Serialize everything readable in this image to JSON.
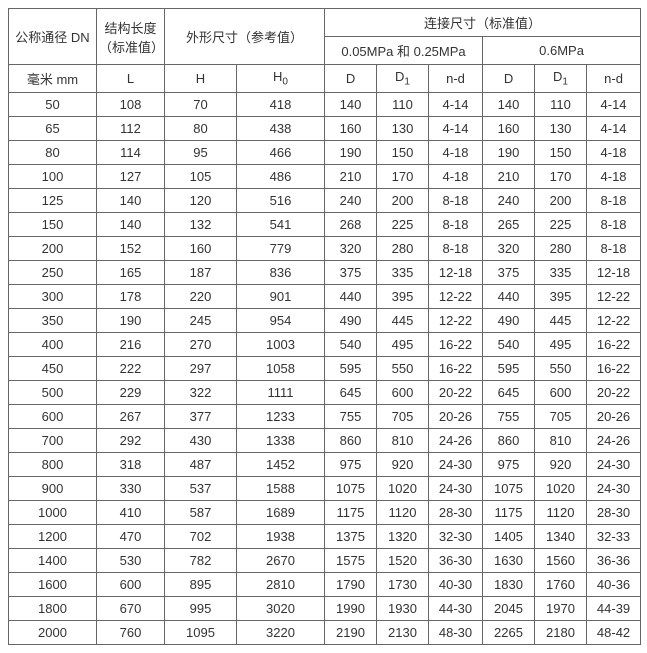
{
  "headers": {
    "dn": "公称通径 DN",
    "struct_len": "结构长度\n（标准值）",
    "outer_dim": "外形尺寸（参考值）",
    "conn_dim": "连接尺寸（标准值）",
    "press1": "0.05MPa 和 0.25MPa",
    "press2": "0.6MPa",
    "unit_mm": "毫米 mm",
    "L": "L",
    "H": "H",
    "H0": "H",
    "H0_sub": "0",
    "D": "D",
    "D1": "D",
    "D1_sub": "1",
    "nd": "n-d"
  },
  "col_widths": {
    "dn": 88,
    "L": 68,
    "H": 72,
    "H0": 88,
    "D": 52,
    "D1": 52,
    "nd": 54,
    "D2": 52,
    "D12": 52,
    "nd2": 54
  },
  "rows": [
    {
      "dn": "50",
      "L": "108",
      "H": "70",
      "H0": "418",
      "D": "140",
      "D1": "110",
      "nd": "4-14",
      "D2": "140",
      "D12": "110",
      "nd2": "4-14"
    },
    {
      "dn": "65",
      "L": "112",
      "H": "80",
      "H0": "438",
      "D": "160",
      "D1": "130",
      "nd": "4-14",
      "D2": "160",
      "D12": "130",
      "nd2": "4-14"
    },
    {
      "dn": "80",
      "L": "114",
      "H": "95",
      "H0": "466",
      "D": "190",
      "D1": "150",
      "nd": "4-18",
      "D2": "190",
      "D12": "150",
      "nd2": "4-18"
    },
    {
      "dn": "100",
      "L": "127",
      "H": "105",
      "H0": "486",
      "D": "210",
      "D1": "170",
      "nd": "4-18",
      "D2": "210",
      "D12": "170",
      "nd2": "4-18"
    },
    {
      "dn": "125",
      "L": "140",
      "H": "120",
      "H0": "516",
      "D": "240",
      "D1": "200",
      "nd": "8-18",
      "D2": "240",
      "D12": "200",
      "nd2": "8-18"
    },
    {
      "dn": "150",
      "L": "140",
      "H": "132",
      "H0": "541",
      "D": "268",
      "D1": "225",
      "nd": "8-18",
      "D2": "265",
      "D12": "225",
      "nd2": "8-18"
    },
    {
      "dn": "200",
      "L": "152",
      "H": "160",
      "H0": "779",
      "D": "320",
      "D1": "280",
      "nd": "8-18",
      "D2": "320",
      "D12": "280",
      "nd2": "8-18"
    },
    {
      "dn": "250",
      "L": "165",
      "H": "187",
      "H0": "836",
      "D": "375",
      "D1": "335",
      "nd": "12-18",
      "D2": "375",
      "D12": "335",
      "nd2": "12-18"
    },
    {
      "dn": "300",
      "L": "178",
      "H": "220",
      "H0": "901",
      "D": "440",
      "D1": "395",
      "nd": "12-22",
      "D2": "440",
      "D12": "395",
      "nd2": "12-22"
    },
    {
      "dn": "350",
      "L": "190",
      "H": "245",
      "H0": "954",
      "D": "490",
      "D1": "445",
      "nd": "12-22",
      "D2": "490",
      "D12": "445",
      "nd2": "12-22"
    },
    {
      "dn": "400",
      "L": "216",
      "H": "270",
      "H0": "1003",
      "D": "540",
      "D1": "495",
      "nd": "16-22",
      "D2": "540",
      "D12": "495",
      "nd2": "16-22"
    },
    {
      "dn": "450",
      "L": "222",
      "H": "297",
      "H0": "1058",
      "D": "595",
      "D1": "550",
      "nd": "16-22",
      "D2": "595",
      "D12": "550",
      "nd2": "16-22"
    },
    {
      "dn": "500",
      "L": "229",
      "H": "322",
      "H0": "1111",
      "D": "645",
      "D1": "600",
      "nd": "20-22",
      "D2": "645",
      "D12": "600",
      "nd2": "20-22"
    },
    {
      "dn": "600",
      "L": "267",
      "H": "377",
      "H0": "1233",
      "D": "755",
      "D1": "705",
      "nd": "20-26",
      "D2": "755",
      "D12": "705",
      "nd2": "20-26"
    },
    {
      "dn": "700",
      "L": "292",
      "H": "430",
      "H0": "1338",
      "D": "860",
      "D1": "810",
      "nd": "24-26",
      "D2": "860",
      "D12": "810",
      "nd2": "24-26"
    },
    {
      "dn": "800",
      "L": "318",
      "H": "487",
      "H0": "1452",
      "D": "975",
      "D1": "920",
      "nd": "24-30",
      "D2": "975",
      "D12": "920",
      "nd2": "24-30"
    },
    {
      "dn": "900",
      "L": "330",
      "H": "537",
      "H0": "1588",
      "D": "1075",
      "D1": "1020",
      "nd": "24-30",
      "D2": "1075",
      "D12": "1020",
      "nd2": "24-30"
    },
    {
      "dn": "1000",
      "L": "410",
      "H": "587",
      "H0": "1689",
      "D": "1175",
      "D1": "1120",
      "nd": "28-30",
      "D2": "1175",
      "D12": "1120",
      "nd2": "28-30"
    },
    {
      "dn": "1200",
      "L": "470",
      "H": "702",
      "H0": "1938",
      "D": "1375",
      "D1": "1320",
      "nd": "32-30",
      "D2": "1405",
      "D12": "1340",
      "nd2": "32-33"
    },
    {
      "dn": "1400",
      "L": "530",
      "H": "782",
      "H0": "2670",
      "D": "1575",
      "D1": "1520",
      "nd": "36-30",
      "D2": "1630",
      "D12": "1560",
      "nd2": "36-36"
    },
    {
      "dn": "1600",
      "L": "600",
      "H": "895",
      "H0": "2810",
      "D": "1790",
      "D1": "1730",
      "nd": "40-30",
      "D2": "1830",
      "D12": "1760",
      "nd2": "40-36"
    },
    {
      "dn": "1800",
      "L": "670",
      "H": "995",
      "H0": "3020",
      "D": "1990",
      "D1": "1930",
      "nd": "44-30",
      "D2": "2045",
      "D12": "1970",
      "nd2": "44-39"
    },
    {
      "dn": "2000",
      "L": "760",
      "H": "1095",
      "H0": "3220",
      "D": "2190",
      "D1": "2130",
      "nd": "48-30",
      "D2": "2265",
      "D12": "2180",
      "nd2": "48-42"
    }
  ]
}
